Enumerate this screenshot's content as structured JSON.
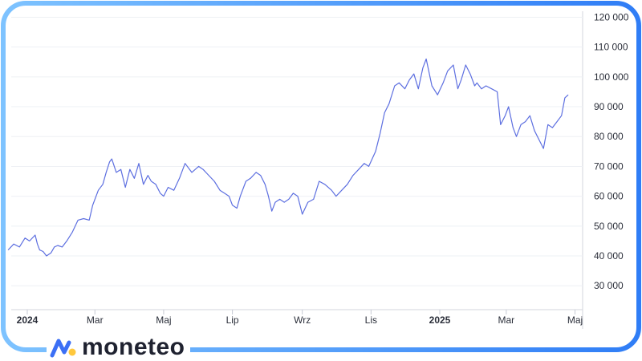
{
  "brand": {
    "name": "moneteo",
    "logo_icon": "moneteo-logo-icon",
    "colors": {
      "frame_start": "#7ec3ff",
      "frame_end": "#2f7df6",
      "logo_blue": "#3b6ff5",
      "logo_yellow": "#ffc83d"
    }
  },
  "chart_data": {
    "type": "line",
    "title": "",
    "xlabel": "",
    "ylabel": "",
    "line_color": "#5d6fe0",
    "ylim": [
      22000,
      122000
    ],
    "y_ticks": [
      30000,
      40000,
      50000,
      60000,
      70000,
      80000,
      90000,
      100000,
      110000,
      120000
    ],
    "y_tick_labels": [
      "30 000",
      "40 000",
      "50 000",
      "60 000",
      "70 000",
      "80 000",
      "90 000",
      "100 000",
      "110 000",
      "120 000"
    ],
    "y_axis_position": "right",
    "x_ticks": [
      {
        "label": "2024",
        "x": "2024-01",
        "bold": true
      },
      {
        "label": "Mar",
        "x": "2024-03",
        "bold": false
      },
      {
        "label": "Maj",
        "x": "2024-05",
        "bold": false
      },
      {
        "label": "Lip",
        "x": "2024-07",
        "bold": false
      },
      {
        "label": "Wrz",
        "x": "2024-09",
        "bold": false
      },
      {
        "label": "Lis",
        "x": "2024-11",
        "bold": false
      },
      {
        "label": "2025",
        "x": "2025-01",
        "bold": true
      },
      {
        "label": "Mar",
        "x": "2025-03",
        "bold": false
      },
      {
        "label": "Maj",
        "x": "2025-05",
        "bold": false
      }
    ],
    "grid": "horizontal",
    "series": [
      {
        "x": [
          "2023-12-15",
          "2023-12-20",
          "2023-12-25",
          "2023-12-30",
          "2024-01-03",
          "2024-01-08",
          "2024-01-10",
          "2024-01-12",
          "2024-01-15",
          "2024-01-18",
          "2024-01-22",
          "2024-01-25",
          "2024-01-28",
          "2024-02-01",
          "2024-02-05",
          "2024-02-10",
          "2024-02-15",
          "2024-02-20",
          "2024-02-25",
          "2024-02-28",
          "2024-03-04",
          "2024-03-08",
          "2024-03-11",
          "2024-03-14",
          "2024-03-16",
          "2024-03-20",
          "2024-03-24",
          "2024-03-28",
          "2024-04-01",
          "2024-04-05",
          "2024-04-09",
          "2024-04-13",
          "2024-04-17",
          "2024-04-20",
          "2024-04-24",
          "2024-04-28",
          "2024-05-01",
          "2024-05-05",
          "2024-05-10",
          "2024-05-15",
          "2024-05-20",
          "2024-05-26",
          "2024-06-01",
          "2024-06-05",
          "2024-06-10",
          "2024-06-15",
          "2024-06-20",
          "2024-06-24",
          "2024-06-28",
          "2024-07-01",
          "2024-07-05",
          "2024-07-08",
          "2024-07-13",
          "2024-07-17",
          "2024-07-22",
          "2024-07-26",
          "2024-07-30",
          "2024-08-02",
          "2024-08-05",
          "2024-08-08",
          "2024-08-12",
          "2024-08-16",
          "2024-08-20",
          "2024-08-24",
          "2024-08-28",
          "2024-09-01",
          "2024-09-06",
          "2024-09-11",
          "2024-09-16",
          "2024-09-21",
          "2024-09-27",
          "2024-10-01",
          "2024-10-06",
          "2024-10-11",
          "2024-10-16",
          "2024-10-21",
          "2024-10-26",
          "2024-10-30",
          "2024-11-05",
          "2024-11-09",
          "2024-11-13",
          "2024-11-17",
          "2024-11-22",
          "2024-11-26",
          "2024-12-01",
          "2024-12-05",
          "2024-12-09",
          "2024-12-13",
          "2024-12-17",
          "2024-12-20",
          "2024-12-25",
          "2024-12-30",
          "2025-01-04",
          "2025-01-08",
          "2025-01-13",
          "2025-01-17",
          "2025-01-20",
          "2025-01-24",
          "2025-01-28",
          "2025-02-01",
          "2025-02-03",
          "2025-02-07",
          "2025-02-11",
          "2025-02-16",
          "2025-02-21",
          "2025-02-24",
          "2025-02-28",
          "2025-03-03",
          "2025-03-07",
          "2025-03-10",
          "2025-03-14",
          "2025-03-18",
          "2025-03-22",
          "2025-03-26",
          "2025-03-30",
          "2025-04-03",
          "2025-04-07",
          "2025-04-11",
          "2025-04-15",
          "2025-04-19",
          "2025-04-22",
          "2025-04-25"
        ],
        "y": [
          42000,
          44000,
          43000,
          46000,
          45000,
          47000,
          44000,
          42000,
          41500,
          40000,
          41000,
          43000,
          43500,
          43000,
          45000,
          48000,
          52000,
          52500,
          52000,
          57000,
          62000,
          64000,
          68000,
          71500,
          72500,
          68000,
          69000,
          63000,
          69000,
          66000,
          71000,
          64000,
          67000,
          65000,
          64000,
          61000,
          60000,
          63000,
          62000,
          66000,
          71000,
          68000,
          70000,
          69000,
          67000,
          65000,
          62000,
          61000,
          60000,
          57000,
          56000,
          60000,
          65000,
          66000,
          68000,
          67000,
          64000,
          60000,
          55000,
          58000,
          59000,
          58000,
          59000,
          61000,
          60000,
          54000,
          58000,
          59000,
          65000,
          64000,
          62000,
          60000,
          62000,
          64000,
          67000,
          69000,
          71000,
          70000,
          75000,
          81000,
          88000,
          91000,
          97000,
          98000,
          96000,
          99000,
          101000,
          96000,
          103000,
          106000,
          97000,
          94000,
          98000,
          102000,
          104000,
          96000,
          99000,
          104000,
          101000,
          97000,
          98000,
          96000,
          97000,
          96000,
          95000,
          84000,
          87000,
          90000,
          83000,
          80000,
          84000,
          85000,
          87000,
          82000,
          79000,
          76000,
          84000,
          83000,
          85000,
          87000,
          93000,
          94000
        ]
      }
    ]
  }
}
